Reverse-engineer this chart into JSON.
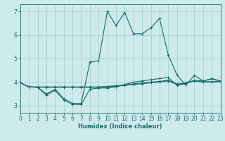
{
  "xlabel": "Humidex (Indice chaleur)",
  "xlim": [
    0,
    23
  ],
  "ylim": [
    2.7,
    7.3
  ],
  "yticks": [
    3,
    4,
    5,
    6,
    7
  ],
  "xticks": [
    0,
    1,
    2,
    3,
    4,
    5,
    6,
    7,
    8,
    9,
    10,
    11,
    12,
    13,
    14,
    15,
    16,
    17,
    18,
    19,
    20,
    21,
    22,
    23
  ],
  "background_color": "#ceeaea",
  "grid_color": "#9fcece",
  "line_color": "#1a6b6b",
  "lines": [
    {
      "x": [
        0,
        1,
        2,
        3,
        4,
        5,
        6,
        7,
        8,
        9,
        10,
        11,
        12,
        13,
        14,
        15,
        16,
        17,
        18,
        19,
        20,
        21,
        22,
        23
      ],
      "y": [
        3.97,
        3.8,
        3.78,
        3.78,
        3.78,
        3.78,
        3.78,
        3.78,
        3.78,
        3.78,
        3.8,
        3.83,
        3.86,
        3.9,
        3.93,
        3.97,
        4.0,
        4.05,
        3.9,
        3.95,
        4.05,
        4.0,
        4.0,
        4.02
      ]
    },
    {
      "x": [
        0,
        1,
        2,
        3,
        4,
        5,
        6,
        7,
        8,
        9,
        10,
        11,
        12,
        13,
        14,
        15,
        16,
        17,
        18,
        19,
        20,
        21,
        22,
        23
      ],
      "y": [
        3.97,
        3.8,
        3.8,
        3.8,
        3.8,
        3.8,
        3.8,
        3.8,
        3.8,
        3.8,
        3.82,
        3.85,
        3.88,
        3.93,
        3.96,
        4.0,
        4.03,
        4.08,
        3.92,
        3.97,
        4.07,
        4.02,
        4.02,
        4.04
      ]
    },
    {
      "x": [
        0,
        1,
        2,
        3,
        4,
        5,
        6,
        7,
        8,
        9,
        10,
        11,
        12,
        13,
        14,
        15,
        16,
        17,
        18,
        19,
        20,
        21,
        22,
        23
      ],
      "y": [
        3.97,
        3.8,
        3.78,
        3.45,
        3.65,
        3.25,
        3.05,
        3.05,
        3.7,
        3.75,
        3.75,
        3.8,
        3.9,
        4.0,
        4.05,
        4.1,
        4.15,
        4.2,
        3.87,
        3.93,
        4.07,
        4.05,
        4.13,
        4.05
      ]
    },
    {
      "x": [
        0,
        1,
        2,
        3,
        4,
        5,
        6,
        7,
        8,
        9,
        10,
        11,
        12,
        13,
        14,
        15,
        16,
        17,
        18,
        19,
        20,
        21,
        22,
        23
      ],
      "y": [
        3.97,
        3.8,
        3.78,
        3.5,
        3.7,
        3.3,
        3.1,
        3.1,
        4.85,
        4.9,
        7.0,
        6.4,
        6.95,
        6.05,
        6.05,
        6.3,
        6.7,
        5.15,
        4.3,
        3.88,
        4.28,
        4.05,
        4.15,
        4.05
      ]
    }
  ]
}
